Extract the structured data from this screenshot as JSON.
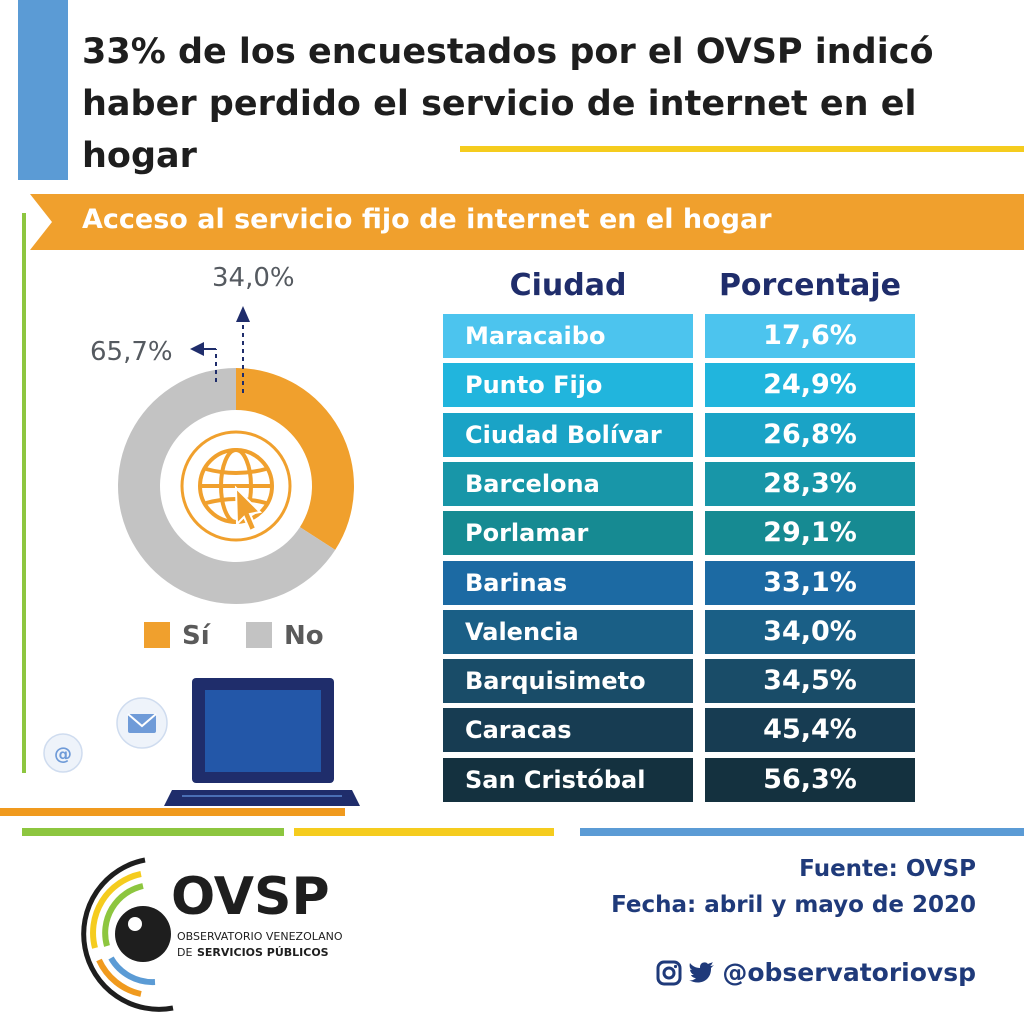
{
  "title": "33% de los encuestados por el OVSP indicó haber perdido el servicio de internet en el hogar",
  "subtitle": "Acceso al servicio fijo de internet en el hogar",
  "table": {
    "header_city": "Ciudad",
    "header_pct": "Porcentaje"
  },
  "chart_data": [
    {
      "type": "pie",
      "title": "",
      "labels": [
        "Sí",
        "No"
      ],
      "values": [
        34.0,
        65.7
      ],
      "value_labels": [
        "34,0%",
        "65,7%"
      ],
      "legend": [
        "Sí",
        "No"
      ],
      "colors": [
        "#f0a02d",
        "#c3c3c3"
      ],
      "donut": true,
      "center_icon": "globe-cursor-icon"
    },
    {
      "type": "table",
      "columns": [
        "Ciudad",
        "Porcentaje"
      ],
      "rows": [
        [
          "Maracaibo",
          "17,6%"
        ],
        [
          "Punto Fijo",
          "24,9%"
        ],
        [
          "Ciudad Bolívar",
          "26,8%"
        ],
        [
          "Barcelona",
          "28,3%"
        ],
        [
          "Porlamar",
          "29,1%"
        ],
        [
          "Barinas",
          "33,1%"
        ],
        [
          "Valencia",
          "34,0%"
        ],
        [
          "Barquisimeto",
          "34,5%"
        ],
        [
          "Caracas",
          "45,4%"
        ],
        [
          "San Cristóbal",
          "56,3%"
        ]
      ],
      "row_colors": [
        "#4cc4ee",
        "#21b5dd",
        "#1aa3c6",
        "#1896a8",
        "#168a92",
        "#1c6aa3",
        "#1a5f86",
        "#194c68",
        "#173c52",
        "#14313f"
      ]
    }
  ],
  "logo": {
    "name": "OVSP",
    "line1": "OBSERVATORIO VENEZOLANO",
    "line2_prefix": "DE",
    "line2": "SERVICIOS PÚBLICOS"
  },
  "footer": {
    "source": "Fuente: OVSP",
    "date": "Fecha: abril y mayo de 2020",
    "handle": "@observatoriovsp"
  },
  "icons": {
    "mail": "envelope-icon",
    "at": "at-icon",
    "laptop": "laptop-icon",
    "instagram": "instagram-icon",
    "twitter": "twitter-icon"
  },
  "decor": {
    "at_symbol": "@"
  }
}
